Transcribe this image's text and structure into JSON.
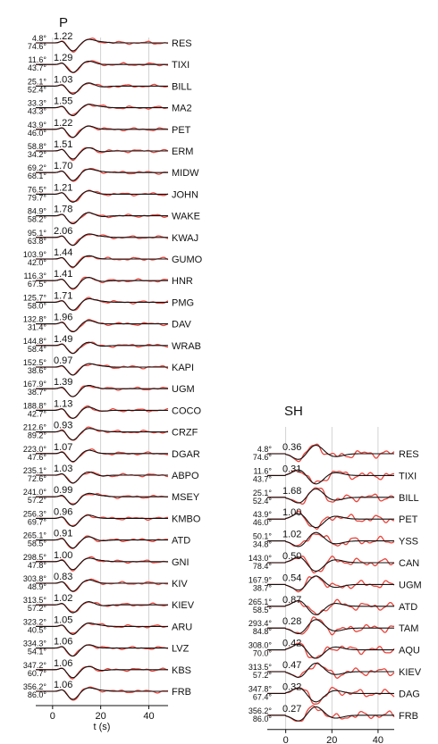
{
  "figure": {
    "p_panel": {
      "title": "P",
      "x_label": "t (s)",
      "x_ticks": [
        "0",
        "20",
        "40"
      ],
      "x_tick_values": [
        0,
        20,
        40
      ],
      "x_range": [
        -7,
        48
      ],
      "traces": [
        {
          "station": "RES",
          "azimuth": "4.8°",
          "distance": "74.6°",
          "amplitude": "1.22"
        },
        {
          "station": "TIXI",
          "azimuth": "11.6°",
          "distance": "43.7°",
          "amplitude": "1.29"
        },
        {
          "station": "BILL",
          "azimuth": "25.1°",
          "distance": "52.4°",
          "amplitude": "1.03"
        },
        {
          "station": "MA2",
          "azimuth": "33.3°",
          "distance": "43.3°",
          "amplitude": "1.55"
        },
        {
          "station": "PET",
          "azimuth": "43.9°",
          "distance": "46.0°",
          "amplitude": "1.22"
        },
        {
          "station": "ERM",
          "azimuth": "58.8°",
          "distance": "34.2°",
          "amplitude": "1.51"
        },
        {
          "station": "MIDW",
          "azimuth": "69.2°",
          "distance": "68.1°",
          "amplitude": "1.70"
        },
        {
          "station": "JOHN",
          "azimuth": "76.5°",
          "distance": "79.7°",
          "amplitude": "1.21"
        },
        {
          "station": "WAKE",
          "azimuth": "84.9°",
          "distance": "58.2°",
          "amplitude": "1.78"
        },
        {
          "station": "KWAJ",
          "azimuth": "95.1°",
          "distance": "63.8°",
          "amplitude": "2.06"
        },
        {
          "station": "GUMO",
          "azimuth": "103.9°",
          "distance": "42.0°",
          "amplitude": "1.44"
        },
        {
          "station": "HNR",
          "azimuth": "116.3°",
          "distance": "67.5°",
          "amplitude": "1.41"
        },
        {
          "station": "PMG",
          "azimuth": "125.7°",
          "distance": "58.0°",
          "amplitude": "1.71"
        },
        {
          "station": "DAV",
          "azimuth": "132.8°",
          "distance": "31.4°",
          "amplitude": "1.96"
        },
        {
          "station": "WRAB",
          "azimuth": "144.8°",
          "distance": "58.4°",
          "amplitude": "1.49"
        },
        {
          "station": "KAPI",
          "azimuth": "152.5°",
          "distance": "38.6°",
          "amplitude": "0.97"
        },
        {
          "station": "UGM",
          "azimuth": "167.9°",
          "distance": "38.7°",
          "amplitude": "1.39"
        },
        {
          "station": "COCO",
          "azimuth": "188.8°",
          "distance": "42.7°",
          "amplitude": "1.13"
        },
        {
          "station": "CRZF",
          "azimuth": "212.6°",
          "distance": "89.2°",
          "amplitude": "0.93"
        },
        {
          "station": "DGAR",
          "azimuth": "223.0°",
          "distance": "47.6°",
          "amplitude": "1.07"
        },
        {
          "station": "ABPO",
          "azimuth": "235.1°",
          "distance": "72.6°",
          "amplitude": "1.03"
        },
        {
          "station": "MSEY",
          "azimuth": "241.0°",
          "distance": "57.2°",
          "amplitude": "0.99"
        },
        {
          "station": "KMBO",
          "azimuth": "256.3°",
          "distance": "69.7°",
          "amplitude": "0.96"
        },
        {
          "station": "ATD",
          "azimuth": "265.1°",
          "distance": "58.5°",
          "amplitude": "0.91"
        },
        {
          "station": "GNI",
          "azimuth": "298.5°",
          "distance": "47.8°",
          "amplitude": "1.00"
        },
        {
          "station": "KIV",
          "azimuth": "303.8°",
          "distance": "48.9°",
          "amplitude": "0.83"
        },
        {
          "station": "KIEV",
          "azimuth": "313.5°",
          "distance": "57.2°",
          "amplitude": "1.02"
        },
        {
          "station": "ARU",
          "azimuth": "323.2°",
          "distance": "40.5°",
          "amplitude": "1.05"
        },
        {
          "station": "LVZ",
          "azimuth": "334.3°",
          "distance": "54.1°",
          "amplitude": "1.06"
        },
        {
          "station": "KBS",
          "azimuth": "347.2°",
          "distance": "60.7°",
          "amplitude": "1.06"
        },
        {
          "station": "FRB",
          "azimuth": "356.2°",
          "distance": "86.0°",
          "amplitude": "1.06"
        }
      ]
    },
    "sh_panel": {
      "title": "SH",
      "x_label": "t (s)",
      "x_ticks": [
        "0",
        "20",
        "40"
      ],
      "x_tick_values": [
        0,
        20,
        40
      ],
      "x_range": [
        -8,
        47
      ],
      "traces": [
        {
          "station": "RES",
          "azimuth": "4.8°",
          "distance": "74.6°",
          "amplitude": "0.36"
        },
        {
          "station": "TIXI",
          "azimuth": "11.6°",
          "distance": "43.7°",
          "amplitude": "0.31"
        },
        {
          "station": "BILL",
          "azimuth": "25.1°",
          "distance": "52.4°",
          "amplitude": "1.68"
        },
        {
          "station": "PET",
          "azimuth": "43.9°",
          "distance": "46.0°",
          "amplitude": "1.00"
        },
        {
          "station": "YSS",
          "azimuth": "50.1°",
          "distance": "34.8°",
          "amplitude": "1.02"
        },
        {
          "station": "CAN",
          "azimuth": "143.0°",
          "distance": "78.4°",
          "amplitude": "0.50"
        },
        {
          "station": "UGM",
          "azimuth": "167.9°",
          "distance": "38.7°",
          "amplitude": "0.54"
        },
        {
          "station": "ATD",
          "azimuth": "265.1°",
          "distance": "58.5°",
          "amplitude": "0.87"
        },
        {
          "station": "TAM",
          "azimuth": "293.4°",
          "distance": "84.8°",
          "amplitude": "0.28"
        },
        {
          "station": "AQU",
          "azimuth": "308.0°",
          "distance": "70.0°",
          "amplitude": "0.42"
        },
        {
          "station": "KIEV",
          "azimuth": "313.5°",
          "distance": "57.2°",
          "amplitude": "0.47"
        },
        {
          "station": "DAG",
          "azimuth": "347.8°",
          "distance": "67.4°",
          "amplitude": "0.32"
        },
        {
          "station": "FRB",
          "azimuth": "356.2°",
          "distance": "86.0°",
          "amplitude": "0.27"
        }
      ]
    },
    "colors": {
      "observed": "#e8453c",
      "synthetic": "#111111",
      "grid": "#c8c8c8",
      "text": "#111111"
    }
  }
}
